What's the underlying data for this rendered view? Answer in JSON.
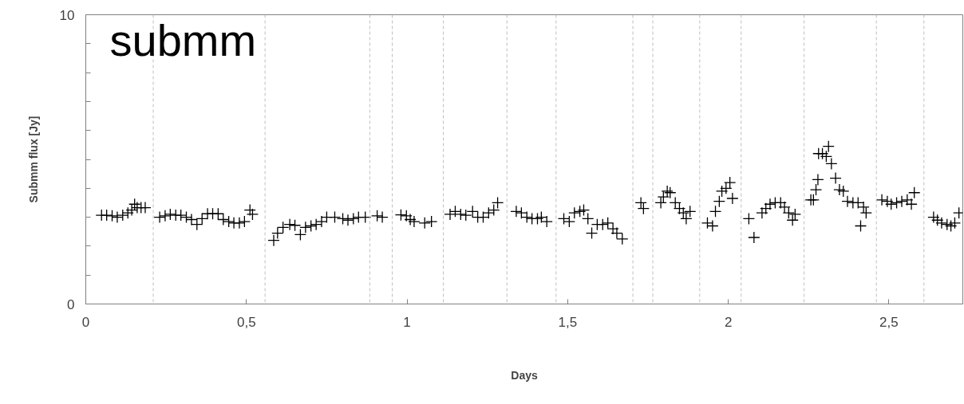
{
  "chart_data": {
    "type": "scatter",
    "xlabel": "Days",
    "ylabel": "Submm flux [Jy]",
    "annotations": [
      "submm"
    ],
    "xlim": [
      0,
      2.73
    ],
    "ylim": [
      0,
      10
    ],
    "xticks": [
      0,
      {
        "value": 0.5,
        "label": "0,5"
      },
      1,
      {
        "value": 1.5,
        "label": "1,5"
      },
      2,
      {
        "value": 2.5,
        "label": "2,5"
      }
    ],
    "yticks": [
      0,
      {
        "value": 1,
        "label": null
      },
      {
        "value": 2,
        "label": null
      },
      {
        "value": 3,
        "label": null
      },
      {
        "value": 4,
        "label": null
      },
      {
        "value": 5,
        "label": null
      },
      {
        "value": 6,
        "label": null
      },
      {
        "value": 7,
        "label": null
      },
      {
        "value": 8,
        "label": null
      },
      {
        "value": 9,
        "label": null
      },
      10
    ],
    "grid": false,
    "marker": "cross",
    "ref_lines": [
      {
        "axis": "x",
        "value": 0.21,
        "color": "#bfbfbf",
        "line_style": "dashed"
      },
      {
        "axis": "x",
        "value": 0.558,
        "color": "#bfbfbf",
        "line_style": "dashed"
      },
      {
        "axis": "x",
        "value": 0.884,
        "color": "#bfbfbf",
        "line_style": "dashed"
      },
      {
        "axis": "x",
        "value": 0.954,
        "color": "#bfbfbf",
        "line_style": "dashed"
      },
      {
        "axis": "x",
        "value": 1.113,
        "color": "#bfbfbf",
        "line_style": "dashed"
      },
      {
        "axis": "x",
        "value": 1.311,
        "color": "#bfbfbf",
        "line_style": "dashed"
      },
      {
        "axis": "x",
        "value": 1.464,
        "color": "#bfbfbf",
        "line_style": "dashed"
      },
      {
        "axis": "x",
        "value": 1.703,
        "color": "#bfbfbf",
        "line_style": "dashed"
      },
      {
        "axis": "x",
        "value": 1.765,
        "color": "#bfbfbf",
        "line_style": "dashed"
      },
      {
        "axis": "x",
        "value": 1.911,
        "color": "#bfbfbf",
        "line_style": "dashed"
      },
      {
        "axis": "x",
        "value": 2.04,
        "color": "#bfbfbf",
        "line_style": "dashed"
      },
      {
        "axis": "x",
        "value": 2.236,
        "color": "#bfbfbf",
        "line_style": "dashed"
      },
      {
        "axis": "x",
        "value": 2.461,
        "color": "#bfbfbf",
        "line_style": "dashed"
      },
      {
        "axis": "x",
        "value": 2.609,
        "color": "#bfbfbf",
        "line_style": "dashed"
      }
    ],
    "series": [
      {
        "color": "#000000",
        "x": [
          0.049,
          0.065,
          0.082,
          0.098,
          0.115,
          0.131,
          0.143,
          0.152,
          0.16,
          0.172,
          0.185,
          0.23,
          0.247,
          0.263,
          0.28,
          0.296,
          0.313,
          0.329,
          0.346,
          0.362,
          0.379,
          0.395,
          0.412,
          0.428,
          0.445,
          0.461,
          0.478,
          0.494,
          0.511,
          0.519,
          0.585,
          0.597,
          0.614,
          0.635,
          0.651,
          0.668,
          0.684,
          0.701,
          0.717,
          0.734,
          0.75,
          0.775,
          0.8,
          0.816,
          0.833,
          0.849,
          0.87,
          0.907,
          0.923,
          0.981,
          0.998,
          1.01,
          1.022,
          1.055,
          1.076,
          1.134,
          1.15,
          1.167,
          1.183,
          1.204,
          1.22,
          1.237,
          1.254,
          1.27,
          1.282,
          1.34,
          1.356,
          1.373,
          1.389,
          1.406,
          1.418,
          1.435,
          1.488,
          1.505,
          1.521,
          1.538,
          1.55,
          1.563,
          1.575,
          1.592,
          1.609,
          1.625,
          1.641,
          1.653,
          1.67,
          1.728,
          1.736,
          1.79,
          1.798,
          1.81,
          1.819,
          1.835,
          1.848,
          1.86,
          1.869,
          1.881,
          1.935,
          1.951,
          1.96,
          1.972,
          1.98,
          1.993,
          2.005,
          2.013,
          2.064,
          2.08,
          2.105,
          2.117,
          2.13,
          2.146,
          2.163,
          2.175,
          2.188,
          2.2,
          2.208,
          2.257,
          2.265,
          2.273,
          2.279,
          2.281,
          2.293,
          2.305,
          2.312,
          2.321,
          2.334,
          2.346,
          2.358,
          2.371,
          2.388,
          2.404,
          2.412,
          2.421,
          2.429,
          2.478,
          2.495,
          2.507,
          2.524,
          2.54,
          2.557,
          2.57,
          2.579,
          2.639,
          2.651,
          2.664,
          2.681,
          2.693,
          2.705,
          2.718
        ],
        "values": [
          3.07,
          3.07,
          3.05,
          3.0,
          3.07,
          3.15,
          3.25,
          3.45,
          3.33,
          3.33,
          3.33,
          3.0,
          3.05,
          3.1,
          3.07,
          3.07,
          3.0,
          2.92,
          2.75,
          2.95,
          3.12,
          3.12,
          3.12,
          2.92,
          2.85,
          2.8,
          2.8,
          2.85,
          3.25,
          3.1,
          2.2,
          2.45,
          2.65,
          2.75,
          2.72,
          2.4,
          2.65,
          2.7,
          2.75,
          2.85,
          3.0,
          3.0,
          2.95,
          2.9,
          2.95,
          3.0,
          3.0,
          3.05,
          3.0,
          3.08,
          3.05,
          2.92,
          2.85,
          2.8,
          2.85,
          3.1,
          3.2,
          3.1,
          3.07,
          3.2,
          3.0,
          3.0,
          3.15,
          3.25,
          3.5,
          3.2,
          3.15,
          3.0,
          2.95,
          2.95,
          3.0,
          2.85,
          2.95,
          2.85,
          3.15,
          3.2,
          3.25,
          2.95,
          2.45,
          2.75,
          2.75,
          2.8,
          2.6,
          2.45,
          2.25,
          3.5,
          3.3,
          3.5,
          3.7,
          3.9,
          3.85,
          3.5,
          3.3,
          3.15,
          2.95,
          3.2,
          2.8,
          2.7,
          3.2,
          3.55,
          3.9,
          4.0,
          4.2,
          3.65,
          2.95,
          2.3,
          3.15,
          3.3,
          3.45,
          3.5,
          3.5,
          3.35,
          3.15,
          2.9,
          3.1,
          3.6,
          3.6,
          3.95,
          4.3,
          5.2,
          5.2,
          5.1,
          5.45,
          4.85,
          4.35,
          3.95,
          3.9,
          3.55,
          3.5,
          3.5,
          2.7,
          3.35,
          3.15,
          3.6,
          3.55,
          3.45,
          3.5,
          3.55,
          3.6,
          3.45,
          3.85,
          3.0,
          2.9,
          2.8,
          2.75,
          2.7,
          2.8,
          3.15
        ]
      }
    ]
  }
}
